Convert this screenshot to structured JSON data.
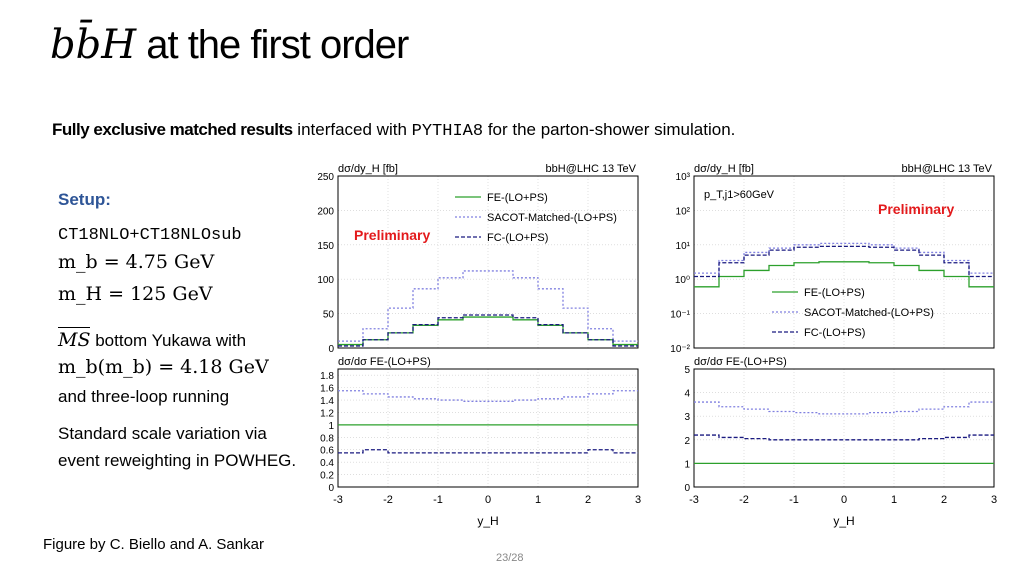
{
  "slide": {
    "title_math": "bb̄H",
    "title_text": "at the first order",
    "subtitle_bold": "Fully exclusive matched results",
    "subtitle_mid": "interfaced with",
    "subtitle_code": "PYTHIA8",
    "subtitle_end": "for the parton-shower simulation.",
    "setup_heading": "Setup:",
    "pdf": "CT18NLO+CT18NLOsub",
    "mb": "m_b = 4.75 GeV",
    "mh": "m_H = 125 GeV",
    "yukawa_scheme": "MS",
    "yukawa_text": "bottom Yukawa with",
    "mb_running": "m_b(m_b) = 4.18 GeV",
    "running_text": "and three-loop running",
    "scale_text": "Standard scale variation via event reweighting in POWHEG.",
    "credit": "Figure by C. Biello and A. Sankar",
    "page": "23/28"
  },
  "colors": {
    "fe": "#2ca02c",
    "sacot": "#8080e0",
    "fc": "#1a1a80",
    "preliminary": "#e31a1c",
    "heading": "#2e5597"
  },
  "chart_data": [
    {
      "type": "line",
      "panel": "left-top",
      "ylabel": "dσ/dy_H [fb]",
      "xlabel": "y_H",
      "process_label": "bbH@LHC 13 TeV",
      "annotation": "Preliminary",
      "ylim": [
        0,
        250
      ],
      "yticks": [
        0,
        50,
        100,
        150,
        200,
        250
      ],
      "xlim": [
        -3,
        3
      ],
      "xticks": [
        -3,
        -2,
        -1,
        0,
        1,
        2,
        3
      ],
      "x": [
        -2.75,
        -2.25,
        -1.75,
        -1.25,
        -0.75,
        -0.25,
        0.25,
        0.75,
        1.25,
        1.75,
        2.25,
        2.75
      ],
      "series": [
        {
          "name": "FE-(LO+PS)",
          "style": "solid",
          "values": [
            5,
            12,
            22,
            33,
            41,
            45,
            45,
            41,
            33,
            22,
            12,
            5
          ]
        },
        {
          "name": "SACOT-Matched-(LO+PS)",
          "style": "dotted",
          "values": [
            10,
            28,
            58,
            86,
            102,
            112,
            112,
            102,
            86,
            58,
            28,
            10
          ]
        },
        {
          "name": "FC-(LO+PS)",
          "style": "dashed",
          "values": [
            3,
            12,
            22,
            34,
            44,
            48,
            48,
            44,
            34,
            22,
            12,
            3
          ]
        }
      ]
    },
    {
      "type": "line",
      "panel": "left-bottom",
      "ylabel": "dσ/dσ FE-(LO+PS)",
      "xlabel": "y_H",
      "ylim": [
        0,
        1.9
      ],
      "yticks": [
        0,
        0.2,
        0.4,
        0.6,
        0.8,
        1,
        1.2,
        1.4,
        1.6,
        1.8
      ],
      "xlim": [
        -3,
        3
      ],
      "xticks": [
        -3,
        -2,
        -1,
        0,
        1,
        2,
        3
      ],
      "x": [
        -2.75,
        -2.25,
        -1.75,
        -1.25,
        -0.75,
        -0.25,
        0.25,
        0.75,
        1.25,
        1.75,
        2.25,
        2.75
      ],
      "series": [
        {
          "name": "FE-(LO+PS)",
          "style": "solid",
          "values": [
            1,
            1,
            1,
            1,
            1,
            1,
            1,
            1,
            1,
            1,
            1,
            1
          ]
        },
        {
          "name": "SACOT-Matched-(LO+PS)",
          "style": "dotted",
          "values": [
            1.55,
            1.5,
            1.45,
            1.42,
            1.4,
            1.38,
            1.38,
            1.4,
            1.42,
            1.45,
            1.5,
            1.55
          ]
        },
        {
          "name": "FC-(LO+PS)",
          "style": "dashed",
          "values": [
            0.55,
            0.6,
            0.55,
            0.55,
            0.55,
            0.55,
            0.55,
            0.55,
            0.55,
            0.55,
            0.6,
            0.55
          ]
        }
      ]
    },
    {
      "type": "line",
      "panel": "right-top",
      "scale": "log",
      "ylabel": "dσ/dy_H [fb]",
      "xlabel": "y_H",
      "process_label": "bbH@LHC 13 TeV",
      "cut_label": "p_T,j1>60GeV",
      "annotation": "Preliminary",
      "ylim": [
        0.01,
        1000
      ],
      "yticks": [
        "10^-2",
        "10^-1",
        "10^0",
        "10^1",
        "10^2",
        "10^3"
      ],
      "xlim": [
        -3,
        3
      ],
      "xticks": [
        -3,
        -2,
        -1,
        0,
        1,
        2,
        3
      ],
      "x": [
        -2.75,
        -2.25,
        -1.75,
        -1.25,
        -0.75,
        -0.25,
        0.25,
        0.75,
        1.25,
        1.75,
        2.25,
        2.75
      ],
      "series": [
        {
          "name": "FE-(LO+PS)",
          "style": "solid",
          "values": [
            0.6,
            1.2,
            1.8,
            2.5,
            3.0,
            3.2,
            3.2,
            3.0,
            2.5,
            1.8,
            1.2,
            0.6
          ]
        },
        {
          "name": "SACOT-Matched-(LO+PS)",
          "style": "dotted",
          "values": [
            1.5,
            3.5,
            6.0,
            8.0,
            10.0,
            11.0,
            11.0,
            10.0,
            8.0,
            6.0,
            3.5,
            1.5
          ]
        },
        {
          "name": "FC-(LO+PS)",
          "style": "dashed",
          "values": [
            1.2,
            3.0,
            5.0,
            7.0,
            8.5,
            9.0,
            9.0,
            8.5,
            7.0,
            5.0,
            3.0,
            1.2
          ]
        }
      ]
    },
    {
      "type": "line",
      "panel": "right-bottom",
      "ylabel": "dσ/dσ FE-(LO+PS)",
      "xlabel": "y_H",
      "ylim": [
        0,
        5
      ],
      "yticks": [
        0,
        1,
        2,
        3,
        4,
        5
      ],
      "xlim": [
        -3,
        3
      ],
      "xticks": [
        -3,
        -2,
        -1,
        0,
        1,
        2,
        3
      ],
      "x": [
        -2.75,
        -2.25,
        -1.75,
        -1.25,
        -0.75,
        -0.25,
        0.25,
        0.75,
        1.25,
        1.75,
        2.25,
        2.75
      ],
      "series": [
        {
          "name": "FE-(LO+PS)",
          "style": "solid",
          "values": [
            1,
            1,
            1,
            1,
            1,
            1,
            1,
            1,
            1,
            1,
            1,
            1
          ]
        },
        {
          "name": "SACOT-Matched-(LO+PS)",
          "style": "dotted",
          "values": [
            3.6,
            3.4,
            3.3,
            3.2,
            3.15,
            3.1,
            3.1,
            3.15,
            3.2,
            3.3,
            3.4,
            3.6
          ]
        },
        {
          "name": "FC-(LO+PS)",
          "style": "dashed",
          "values": [
            2.2,
            2.1,
            2.05,
            2.0,
            2.0,
            2.0,
            2.0,
            2.0,
            2.0,
            2.05,
            2.1,
            2.2
          ]
        }
      ]
    }
  ]
}
